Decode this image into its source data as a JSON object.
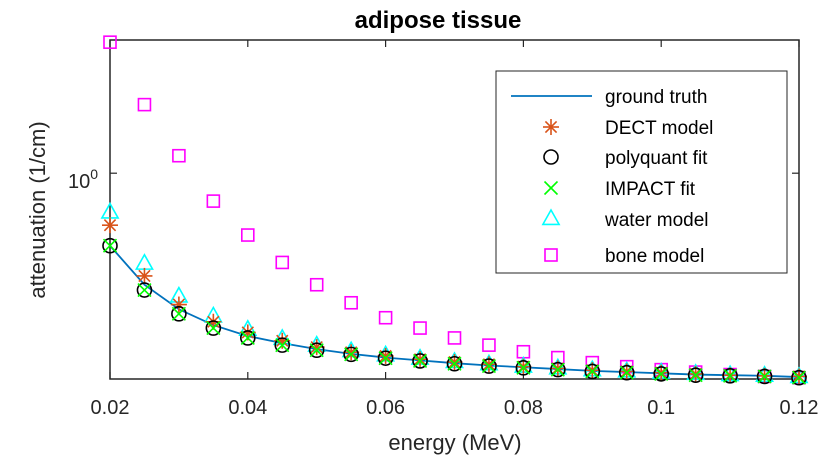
{
  "chart_data": {
    "type": "scatter",
    "title": "adipose tissue",
    "xlabel": "energy (MeV)",
    "ylabel": "attenuation (1/cm)",
    "xlim": [
      0.02,
      0.12
    ],
    "ylim": [
      0.193,
      2.9
    ],
    "yscale": "log",
    "x_ticks": [
      0.02,
      0.04,
      0.06,
      0.08,
      0.1,
      0.12
    ],
    "x_tick_labels": [
      "0.02",
      "0.04",
      "0.06",
      "0.08",
      "0.1",
      "0.12"
    ],
    "y_tick_base": "10",
    "y_tick_exponent": "0",
    "y_tick_value": 1,
    "grid": false,
    "legend_position": "top-right",
    "x": [
      0.02,
      0.025,
      0.03,
      0.035,
      0.04,
      0.045,
      0.05,
      0.055,
      0.06,
      0.065,
      0.07,
      0.075,
      0.08,
      0.085,
      0.09,
      0.095,
      0.1,
      0.105,
      0.11,
      0.115,
      0.12
    ],
    "series": [
      {
        "name": "ground truth",
        "marker": "line",
        "color": "#0072BD",
        "values": [
          0.56,
          0.41,
          0.337,
          0.297,
          0.272,
          0.257,
          0.245,
          0.236,
          0.229,
          0.224,
          0.219,
          0.215,
          0.212,
          0.209,
          0.206,
          0.204,
          0.202,
          0.2,
          0.199,
          0.198,
          0.196
        ]
      },
      {
        "name": "DECT model",
        "marker": "asterisk",
        "color": "#D95319",
        "values": [
          0.66,
          0.44,
          0.35,
          0.305,
          0.28,
          0.262,
          0.249,
          0.239,
          0.232,
          0.226,
          0.221,
          0.217,
          0.213,
          0.21,
          0.207,
          0.205,
          0.203,
          0.201,
          0.199,
          0.198,
          0.197
        ]
      },
      {
        "name": "polyquant fit",
        "marker": "circle",
        "color": "#000000",
        "values": [
          0.56,
          0.393,
          0.325,
          0.29,
          0.268,
          0.253,
          0.243,
          0.235,
          0.228,
          0.223,
          0.218,
          0.214,
          0.211,
          0.208,
          0.205,
          0.203,
          0.201,
          0.199,
          0.198,
          0.197,
          0.195
        ]
      },
      {
        "name": "IMPACT fit",
        "marker": "x",
        "color": "#00FF00",
        "values": [
          0.56,
          0.393,
          0.325,
          0.29,
          0.268,
          0.253,
          0.243,
          0.235,
          0.228,
          0.223,
          0.218,
          0.214,
          0.211,
          0.208,
          0.205,
          0.203,
          0.201,
          0.199,
          0.198,
          0.197,
          0.195
        ]
      },
      {
        "name": "water model",
        "marker": "triangle",
        "color": "#00FFFF",
        "values": [
          0.73,
          0.485,
          0.373,
          0.318,
          0.286,
          0.266,
          0.252,
          0.241,
          0.233,
          0.227,
          0.221,
          0.217,
          0.213,
          0.21,
          0.207,
          0.205,
          0.203,
          0.201,
          0.199,
          0.198,
          0.196
        ]
      },
      {
        "name": "bone model",
        "marker": "square",
        "color": "#FF00FF",
        "values": [
          2.85,
          1.73,
          1.15,
          0.8,
          0.61,
          0.49,
          0.41,
          0.355,
          0.315,
          0.29,
          0.268,
          0.253,
          0.24,
          0.229,
          0.22,
          0.213,
          0.208,
          0.204,
          0.2,
          0.197,
          0.195
        ]
      }
    ]
  }
}
